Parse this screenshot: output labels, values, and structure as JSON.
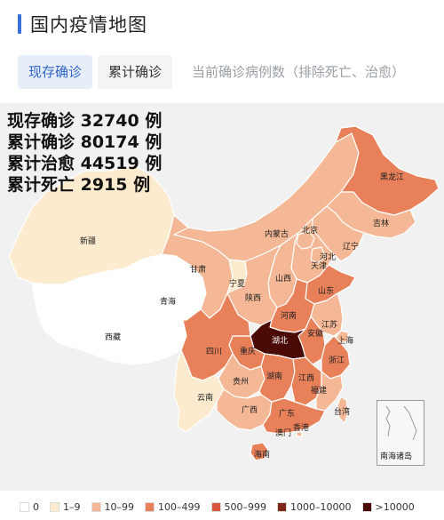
{
  "header": {
    "title": "国内疫情地图"
  },
  "tabs": [
    {
      "label": "现存确诊",
      "active": true
    },
    {
      "label": "累计确诊",
      "active": false
    }
  ],
  "tab_description": "当前确诊病例数（排除死亡、治愈）",
  "stats": [
    "现存确诊 32740 例",
    "累计确诊 80174 例",
    "累计治愈 44519 例",
    "累计死亡 2915 例"
  ],
  "legend": [
    {
      "label": "0",
      "color": "#ffffff"
    },
    {
      "label": "1–9",
      "color": "#fdebcf"
    },
    {
      "label": "10–99",
      "color": "#f4b896"
    },
    {
      "label": "100–499",
      "color": "#e8805a"
    },
    {
      "label": "500–999",
      "color": "#d9543c"
    },
    {
      "label": "1000–10000",
      "color": "#7f2a19"
    },
    {
      "label": ">10000",
      "color": "#4a0b06"
    }
  ],
  "provinces": {
    "xinjiang": "新疆",
    "xizang": "西藏",
    "qinghai": "青海",
    "gansu": "甘肃",
    "neimenggu": "内蒙古",
    "heilongjiang": "黑龙江",
    "jilin": "吉林",
    "liaoning": "辽宁",
    "beijing": "北京",
    "tianjin": "天津",
    "hebei": "河北",
    "shanxi": "山西",
    "shandong": "山东",
    "ningxia": "宁夏",
    "shaanxi": "陕西",
    "henan": "河南",
    "jiangsu": "江苏",
    "anhui": "安徽",
    "shanghai": "上海",
    "hubei": "湖北",
    "sichuan": "四川",
    "chongqing": "重庆",
    "zhejiang": "浙江",
    "guizhou": "贵州",
    "hunan": "湖南",
    "jiangxi": "江西",
    "fujian": "福建",
    "yunnan": "云南",
    "guangxi": "广西",
    "guangdong": "广东",
    "taiwan": "台湾",
    "hongkong": "香港",
    "macau": "澳门",
    "hainan": "海南",
    "south_sea": "南海诸岛"
  },
  "colors": {
    "xinjiang": "#fdebcf",
    "xizang": "#ffffff",
    "qinghai": "#ffffff",
    "gansu": "#f4b896",
    "neimenggu": "#f4b896",
    "heilongjiang": "#e8805a",
    "jilin": "#f4b896",
    "liaoning": "#f4b896",
    "beijing": "#f4b896",
    "tianjin": "#f4b896",
    "hebei": "#f4b896",
    "shanxi": "#f4b896",
    "shandong": "#e8805a",
    "ningxia": "#fdebcf",
    "shaanxi": "#f4b896",
    "henan": "#e8805a",
    "jiangsu": "#f4b896",
    "anhui": "#e8805a",
    "shanghai": "#f4b896",
    "hubei": "#4a0b06",
    "sichuan": "#e8805a",
    "chongqing": "#e8805a",
    "zhejiang": "#e8805a",
    "guizhou": "#f4b896",
    "hunan": "#e8805a",
    "jiangxi": "#e8805a",
    "fujian": "#f4b896",
    "yunnan": "#fdebcf",
    "guangxi": "#f4b896",
    "guangdong": "#e8805a",
    "taiwan": "#f4b896",
    "hongkong": "#f4b896",
    "macau": "#fdebcf",
    "hainan": "#e8805a"
  }
}
